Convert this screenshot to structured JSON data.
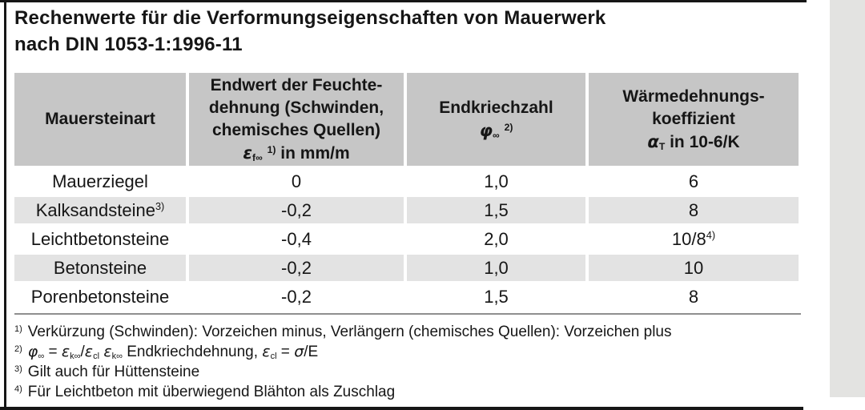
{
  "title": {
    "line1": "Rechenwerte für die Verformungseigenschaften von Mauerwerk",
    "line2": "nach DIN 1053-1:1996-11"
  },
  "table": {
    "header": {
      "col1": "Mauersteinart",
      "col2_lines": [
        "Endwert der Feuchte-",
        "dehnung (Schwinden,",
        "chemisches Quellen)"
      ],
      "col2_formula": [
        {
          "t": "ε",
          "v": "i"
        },
        {
          "t": "f∞",
          "v": "sub"
        },
        {
          "t": " ",
          "v": "n"
        },
        {
          "t": "1)",
          "v": "sup"
        },
        {
          "t": " in mm/m",
          "v": "n"
        }
      ],
      "col3_line": "Endkriechzahl",
      "col3_formula": [
        {
          "t": "φ",
          "v": "i"
        },
        {
          "t": "∞",
          "v": "sub"
        },
        {
          "t": " ",
          "v": "n"
        },
        {
          "t": "2)",
          "v": "sup"
        }
      ],
      "col4_lines": [
        "Wärmedehnungs-",
        "koeffizient"
      ],
      "col4_formula": [
        {
          "t": "α",
          "v": "i"
        },
        {
          "t": "T",
          "v": "sub"
        },
        {
          "t": " in 10-6/K",
          "v": "n"
        }
      ]
    },
    "rows": [
      {
        "cells": [
          [
            {
              "t": "Mauerziegel",
              "v": "n"
            }
          ],
          [
            {
              "t": "0",
              "v": "n"
            }
          ],
          [
            {
              "t": "1,0",
              "v": "n"
            }
          ],
          [
            {
              "t": "6",
              "v": "n"
            }
          ]
        ]
      },
      {
        "cells": [
          [
            {
              "t": "Kalksandsteine",
              "v": "n"
            },
            {
              "t": "3)",
              "v": "sup"
            }
          ],
          [
            {
              "t": "-0,2",
              "v": "n"
            }
          ],
          [
            {
              "t": "1,5",
              "v": "n"
            }
          ],
          [
            {
              "t": "8",
              "v": "n"
            }
          ]
        ]
      },
      {
        "cells": [
          [
            {
              "t": "Leichtbetonsteine",
              "v": "n"
            }
          ],
          [
            {
              "t": "-0,4",
              "v": "n"
            }
          ],
          [
            {
              "t": "2,0",
              "v": "n"
            }
          ],
          [
            {
              "t": "10/8",
              "v": "n"
            },
            {
              "t": "4)",
              "v": "sup"
            }
          ]
        ]
      },
      {
        "cells": [
          [
            {
              "t": "Betonsteine",
              "v": "n"
            }
          ],
          [
            {
              "t": "-0,2",
              "v": "n"
            }
          ],
          [
            {
              "t": "1,0",
              "v": "n"
            }
          ],
          [
            {
              "t": "10",
              "v": "n"
            }
          ]
        ]
      },
      {
        "cells": [
          [
            {
              "t": "Porenbetonsteine",
              "v": "n"
            }
          ],
          [
            {
              "t": "-0,2",
              "v": "n"
            }
          ],
          [
            {
              "t": "1,5",
              "v": "n"
            }
          ],
          [
            {
              "t": "8",
              "v": "n"
            }
          ]
        ]
      }
    ]
  },
  "footnotes": [
    {
      "marker": "1)",
      "segments": [
        {
          "t": "Verkürzung (Schwinden): Vorzeichen minus, Verlängern (chemisches Quellen): Vorzeichen plus",
          "v": "n"
        }
      ]
    },
    {
      "marker": "2)",
      "segments": [
        {
          "t": "φ",
          "v": "i"
        },
        {
          "t": "∞",
          "v": "sub"
        },
        {
          "t": " = ",
          "v": "n"
        },
        {
          "t": "ε",
          "v": "i"
        },
        {
          "t": "k∞",
          "v": "sub"
        },
        {
          "t": "/",
          "v": "n"
        },
        {
          "t": "ε",
          "v": "i"
        },
        {
          "t": "cl",
          "v": "sub"
        },
        {
          "t": "  ",
          "v": "n"
        },
        {
          "t": "ε",
          "v": "i"
        },
        {
          "t": "k∞",
          "v": "sub"
        },
        {
          "t": " Endkriechdehnung, ",
          "v": "n"
        },
        {
          "t": "ε",
          "v": "i"
        },
        {
          "t": "cl",
          "v": "sub"
        },
        {
          "t": " = ",
          "v": "n"
        },
        {
          "t": "σ",
          "v": "i"
        },
        {
          "t": "/E",
          "v": "n"
        }
      ]
    },
    {
      "marker": "3)",
      "segments": [
        {
          "t": "Gilt auch für Hüttensteine",
          "v": "n"
        }
      ]
    },
    {
      "marker": "4)",
      "segments": [
        {
          "t": "Für Leichtbeton mit überwiegend Blähton als Zuschlag",
          "v": "n"
        }
      ]
    }
  ],
  "colors": {
    "header_bg": "#c6c6c6",
    "row_alt_bg": "#e3e3e3",
    "page_edge": "#e3e3e1",
    "rule": "#8f8f8f",
    "text": "#161616"
  }
}
